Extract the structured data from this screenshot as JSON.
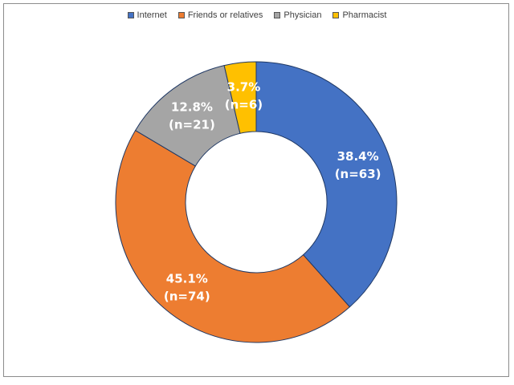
{
  "chart_data": {
    "type": "pie",
    "donut": true,
    "legend_position": "top",
    "slices": [
      {
        "name": "Internet",
        "percent_label": "38.4%",
        "count_label": "(n=63)",
        "value": 63,
        "color": "#4472C4"
      },
      {
        "name": "Friends or relatives",
        "percent_label": "45.1%",
        "count_label": "(n=74)",
        "value": 74,
        "color": "#ED7D31"
      },
      {
        "name": "Physician",
        "percent_label": "12.8%",
        "count_label": "(n=21)",
        "value": 21,
        "color": "#A5A5A5"
      },
      {
        "name": "Pharmacist",
        "percent_label": "3.7%",
        "count_label": "(n=6)",
        "value": 6,
        "color": "#FFC000"
      }
    ]
  }
}
